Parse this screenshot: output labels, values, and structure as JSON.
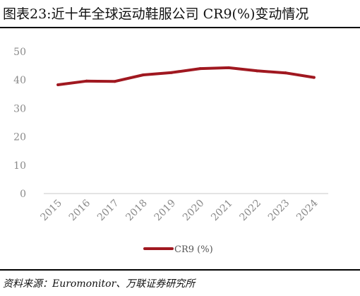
{
  "figure": {
    "title": "图表23:近十年全球运动鞋服公司 CR9(%)变动情况",
    "source": "资料来源：Euromonitor、万联证券研究所"
  },
  "colors": {
    "series": "#a01820",
    "axis": "#c8c8c8",
    "tick": "#8a8a8a"
  },
  "chart_data": {
    "type": "line",
    "title": "",
    "xlabel": "",
    "ylabel": "",
    "x": [
      "2015",
      "2016",
      "2017",
      "2018",
      "2019",
      "2020",
      "2021",
      "2022",
      "2023",
      "2024"
    ],
    "series": [
      {
        "name": "CR9 (%)",
        "values": [
          38.3,
          39.6,
          39.5,
          41.8,
          42.6,
          44.0,
          44.3,
          43.2,
          42.5,
          40.9
        ]
      }
    ],
    "ylim": [
      0,
      50
    ],
    "yticks": [
      "0",
      "10",
      "20",
      "30",
      "40",
      "50"
    ],
    "grid": false,
    "legend": "bottom-center"
  }
}
